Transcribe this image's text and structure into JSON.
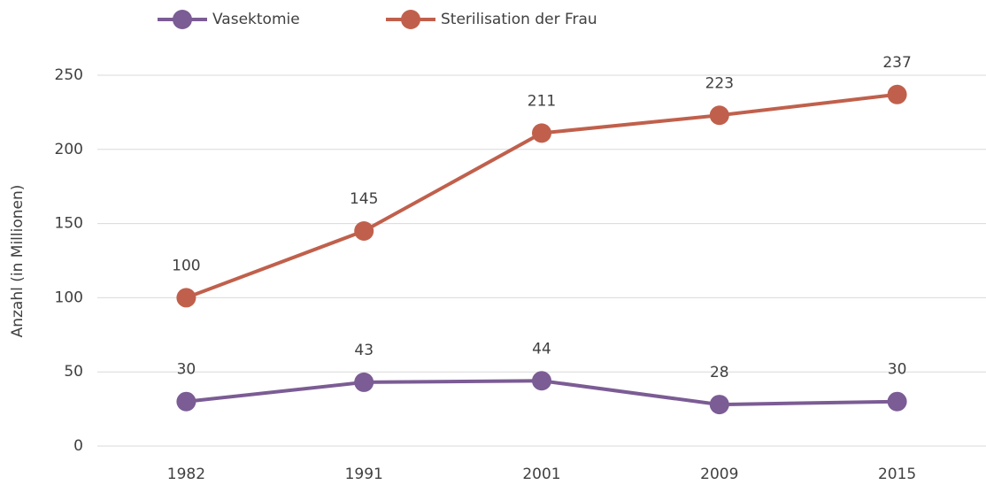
{
  "chart_data": {
    "type": "line",
    "y_label": "Anzahl (in Millionen)",
    "categories": [
      "1982",
      "1991",
      "2001",
      "2009",
      "2015"
    ],
    "series": [
      {
        "name": "Vasektomie",
        "color": "#7b5c94",
        "values": [
          30,
          43,
          44,
          28,
          30
        ]
      },
      {
        "name": "Sterilisation der Frau",
        "color": "#c0604c",
        "values": [
          100,
          145,
          211,
          223,
          237
        ]
      }
    ],
    "ylim": [
      0,
      250
    ],
    "yticks": [
      0,
      50,
      100,
      150,
      200,
      250
    ],
    "grid": true,
    "legend": "top"
  }
}
